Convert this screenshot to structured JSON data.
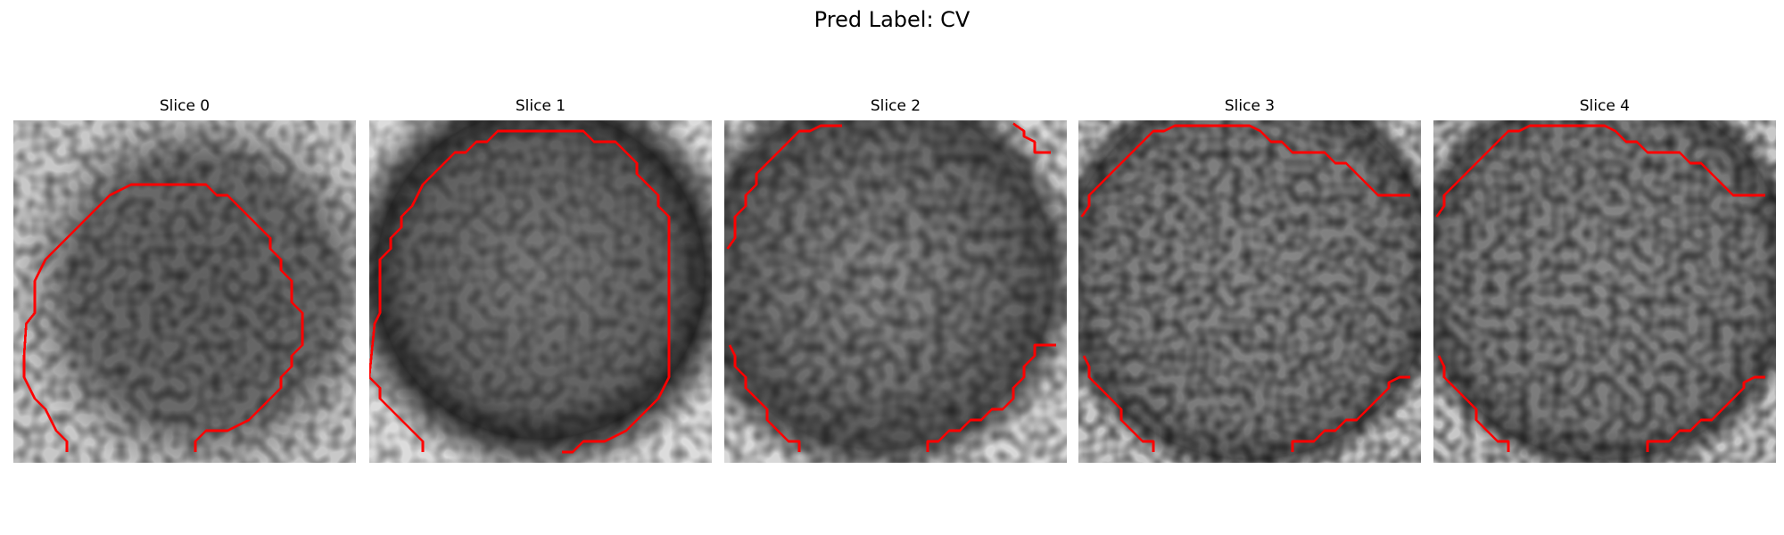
{
  "figure": {
    "title": "Pred Label: CV"
  },
  "panels": [
    {
      "title": "Slice 0"
    },
    {
      "title": "Slice 1"
    },
    {
      "title": "Slice 2"
    },
    {
      "title": "Slice 3"
    },
    {
      "title": "Slice 4"
    }
  ],
  "colors": {
    "contour": "#ff0000",
    "background": "#ffffff",
    "colormap": "grayscale"
  }
}
